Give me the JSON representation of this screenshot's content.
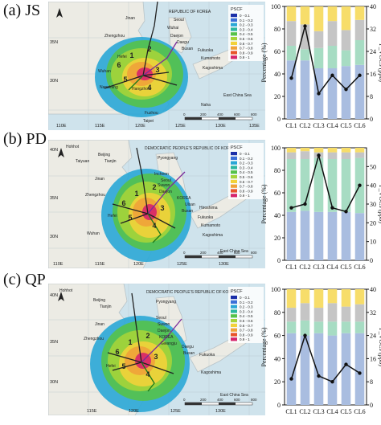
{
  "panels": [
    {
      "label": "(a) JS",
      "map": {
        "legend_title": "PSCF",
        "legend_items": [
          "0 - 0.1",
          "0.1 - 0.2",
          "0.2 - 0.3",
          "0.3 - 0.4",
          "0.4 - 0.5",
          "0.5 - 0.6",
          "0.6 - 0.7",
          "0.7 - 0.8",
          "0.8 - 0.9",
          "0.9 - 1"
        ],
        "legend_colors": [
          "#1b2fa8",
          "#3a6fd8",
          "#2aa7d6",
          "#2bb7a0",
          "#55c24a",
          "#a5d43a",
          "#f2d23a",
          "#f0a23a",
          "#e8542a",
          "#d6246b"
        ],
        "places": [
          "REPUBLIC OF KOREA",
          "Seoul",
          "Wuhai",
          "Daejon",
          "Daegu",
          "Busan",
          "Jinan",
          "Zhengzhou",
          "Hefei",
          "Wuhan",
          "Nanchang",
          "Hangzhou",
          "Fuzhou",
          "Taipei",
          "Fukuoka",
          "Kumamoto",
          "Kagoshima",
          "Naha",
          "East China Sea"
        ],
        "cluster_numbers": [
          "1",
          "2",
          "3",
          "4",
          "5",
          "6"
        ],
        "lat_ticks": [
          "35N",
          "30N"
        ],
        "lon_ticks": [
          "110E",
          "115E",
          "120E",
          "125E",
          "130E",
          "135E"
        ],
        "scale": [
          "0",
          "200",
          "400",
          "600",
          "800",
          "km"
        ]
      },
      "chart_data": {
        "type": "bar",
        "categories": [
          "CL1",
          "CL2",
          "CL3",
          "CL4",
          "CL5",
          "CL6"
        ],
        "series": [
          {
            "values": [
              52,
              52,
              45,
              45,
              47,
              48
            ],
            "color": "#a9bde0"
          },
          {
            "values": [
              13,
              10,
              18,
              20,
              14,
              22
            ],
            "color": "#a7dcc3"
          },
          {
            "values": [
              22,
              22,
              15,
              22,
              18,
              18
            ],
            "color": "#c5c5c5"
          },
          {
            "values": [
              13,
              16,
              22,
              13,
              21,
              12
            ],
            "color": "#f7dd6a"
          }
        ],
        "line": {
          "values": [
            14.5,
            33,
            9,
            15.5,
            10.5,
            15.5
          ]
        },
        "ylabel": "Percentage (%)",
        "y2label": "P_VOCs (ppb)",
        "ylim": [
          0,
          100
        ],
        "y2lim": [
          0,
          40
        ],
        "yticks": [
          "0",
          "20",
          "40",
          "60",
          "80",
          "100"
        ],
        "y2ticks": [
          "0",
          "8",
          "16",
          "24",
          "32",
          "40"
        ]
      }
    },
    {
      "label": "(b) PD",
      "map": {
        "legend_title": "PSCF",
        "legend_items": [
          "0 - 0.1",
          "0.1 - 0.2",
          "0.2 - 0.3",
          "0.3 - 0.4",
          "0.4 - 0.5",
          "0.5 - 0.6",
          "0.6 - 0.7",
          "0.7 - 0.8",
          "0.8 - 0.9",
          "0.9 - 1"
        ],
        "legend_colors": [
          "#1b2fa8",
          "#3a6fd8",
          "#2aa7d6",
          "#2bb7a0",
          "#55c24a",
          "#a5d43a",
          "#f2d23a",
          "#f0a23a",
          "#e8542a",
          "#d6246b"
        ],
        "places": [
          "Hohhot",
          "Beijing",
          "Tianjin",
          "Taiyuan",
          "Jinan",
          "Pyongyang",
          "Incheon",
          "Seoul",
          "Suwon",
          "Daejon",
          "KOREA",
          "Ulsan",
          "Busan",
          "Zhengzhou",
          "Hiroshima",
          "Fukuoka",
          "Kumamoto",
          "Kagoshima",
          "Hefei",
          "Wuhan",
          "East China Sea",
          "DEMOCRATIC PEOPLE'S REPUBLIC OF KOREA"
        ],
        "cluster_numbers": [
          "1",
          "2",
          "3",
          "4",
          "5",
          "6"
        ],
        "lat_ticks": [
          "40N",
          "35N",
          "30N"
        ],
        "lon_ticks": [
          "110E",
          "115E",
          "120E",
          "125E",
          "130E"
        ],
        "scale": [
          "0",
          "200",
          "400",
          "600",
          "800",
          "km"
        ]
      },
      "chart_data": {
        "type": "bar",
        "categories": [
          "CL1",
          "CL2",
          "CL3",
          "CL4",
          "CL5",
          "CL6"
        ],
        "series": [
          {
            "values": [
              43,
              44,
              43,
              43,
              43,
              42
            ],
            "color": "#a9bde0"
          },
          {
            "values": [
              47,
              46,
              48,
              47,
              47,
              49
            ],
            "color": "#a7dcc3"
          },
          {
            "values": [
              6,
              7,
              5,
              6,
              6,
              5
            ],
            "color": "#c5c5c5"
          },
          {
            "values": [
              4,
              3,
              4,
              4,
              4,
              4
            ],
            "color": "#f7dd6a"
          }
        ],
        "line": {
          "values": [
            28,
            30,
            56,
            28,
            26,
            40
          ]
        },
        "ylabel": "Percentage (%)",
        "y2label": "P_VOCs (ppb)",
        "ylim": [
          0,
          100
        ],
        "y2lim": [
          0,
          60
        ],
        "yticks": [
          "0",
          "20",
          "40",
          "60",
          "80",
          "100"
        ],
        "y2ticks": [
          "0",
          "10",
          "20",
          "30",
          "40",
          "50"
        ]
      }
    },
    {
      "label": "(c) QP",
      "map": {
        "legend_title": "PSCF",
        "legend_items": [
          "0 - 0.1",
          "0.1 - 0.2",
          "0.2 - 0.3",
          "0.3 - 0.4",
          "0.4 - 0.5",
          "0.5 - 0.6",
          "0.6 - 0.7",
          "0.7 - 0.8",
          "0.8 - 0.9",
          "0.9 - 1"
        ],
        "legend_colors": [
          "#1b2fa8",
          "#3a6fd8",
          "#2aa7d6",
          "#2bb7a0",
          "#55c24a",
          "#a5d43a",
          "#f2d23a",
          "#f0a23a",
          "#e8542a",
          "#d6246b"
        ],
        "places": [
          "Hohhot",
          "Beijing",
          "Tianjin",
          "Jinan",
          "Pyongyang",
          "Seoul",
          "Suwon",
          "Daejon",
          "KOREA",
          "Gwangju",
          "Daegu",
          "Busan",
          "Zhengzhou",
          "Fukuoka",
          "Kagoshima",
          "Hefei",
          "East China Sea",
          "DEMOCRATIC PEOPLE'S REPUBLIC OF KOREA"
        ],
        "cluster_numbers": [
          "1",
          "2",
          "3",
          "4",
          "5",
          "6"
        ],
        "lat_ticks": [
          "40N",
          "35N",
          "30N"
        ],
        "lon_ticks": [
          "115E",
          "120E",
          "125E",
          "130E"
        ],
        "scale": [
          "0",
          "200",
          "400",
          "600",
          "800",
          "km"
        ]
      },
      "chart_data": {
        "type": "bar",
        "categories": [
          "CL1",
          "CL2",
          "CL3",
          "CL4",
          "CL5",
          "CL6"
        ],
        "series": [
          {
            "values": [
              62,
              60,
              62,
              60,
              62,
              62
            ],
            "color": "#a9bde0"
          },
          {
            "values": [
              10,
              13,
              10,
              12,
              10,
              10
            ],
            "color": "#a7dcc3"
          },
          {
            "values": [
              12,
              15,
              12,
              16,
              13,
              15
            ],
            "color": "#c5c5c5"
          },
          {
            "values": [
              16,
              12,
              16,
              12,
              15,
              13
            ],
            "color": "#f7dd6a"
          }
        ],
        "line": {
          "values": [
            9,
            24,
            10,
            8,
            14,
            11
          ]
        },
        "ylabel": "Percentage (%)",
        "y2label": "P_VOCs (ppb)",
        "ylim": [
          0,
          100
        ],
        "y2lim": [
          0,
          40
        ],
        "yticks": [
          "0",
          "20",
          "40",
          "60",
          "80",
          "100"
        ],
        "y2ticks": [
          "0",
          "8",
          "16",
          "24",
          "32",
          "40"
        ]
      }
    }
  ]
}
